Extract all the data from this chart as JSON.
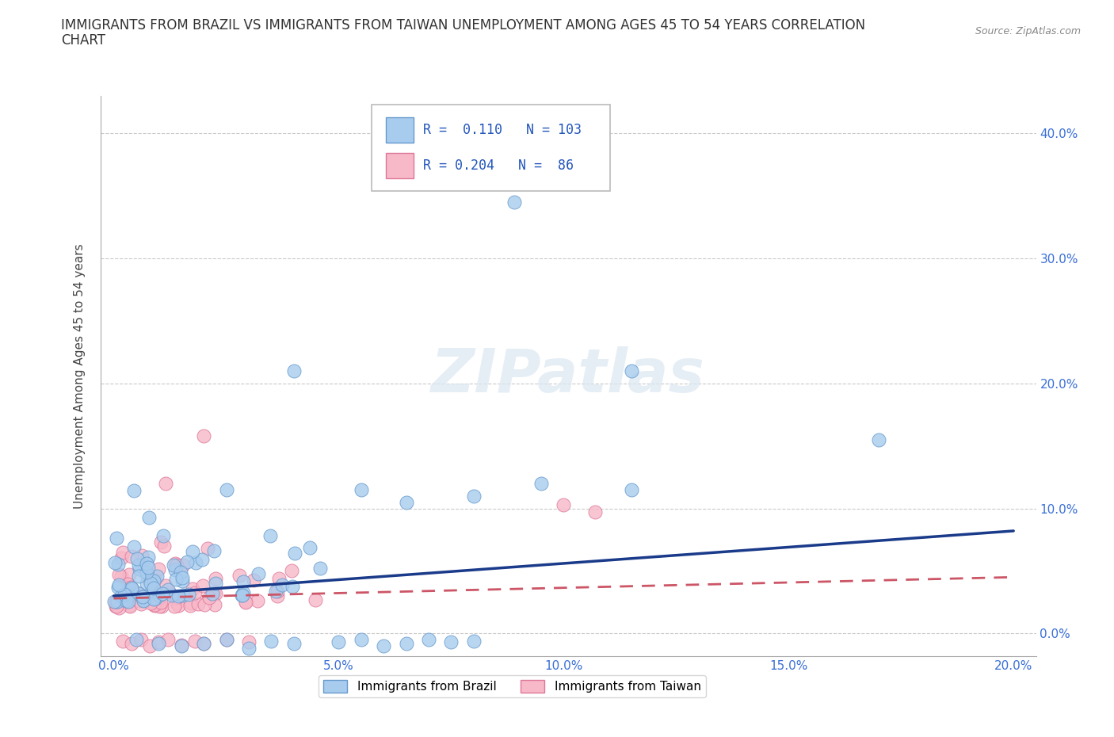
{
  "title_line1": "IMMIGRANTS FROM BRAZIL VS IMMIGRANTS FROM TAIWAN UNEMPLOYMENT AMONG AGES 45 TO 54 YEARS CORRELATION",
  "title_line2": "CHART",
  "source": "Source: ZipAtlas.com",
  "xlim": [
    -0.003,
    0.205
  ],
  "ylim": [
    -0.018,
    0.43
  ],
  "xtick_vals": [
    0.0,
    0.05,
    0.1,
    0.15,
    0.2
  ],
  "ytick_vals": [
    0.0,
    0.1,
    0.2,
    0.3,
    0.4
  ],
  "ylabel": "Unemployment Among Ages 45 to 54 years",
  "brazil_color": "#a8ccee",
  "taiwan_color": "#f7b8c8",
  "brazil_edge": "#6699cc",
  "taiwan_edge": "#dd7799",
  "trend_brazil_color": "#1a3a8a",
  "trend_taiwan_color": "#cc5566",
  "watermark": "ZIPatlas",
  "legend_brazil_R": "0.110",
  "legend_brazil_N": "103",
  "legend_taiwan_R": "0.204",
  "legend_taiwan_N": "86"
}
